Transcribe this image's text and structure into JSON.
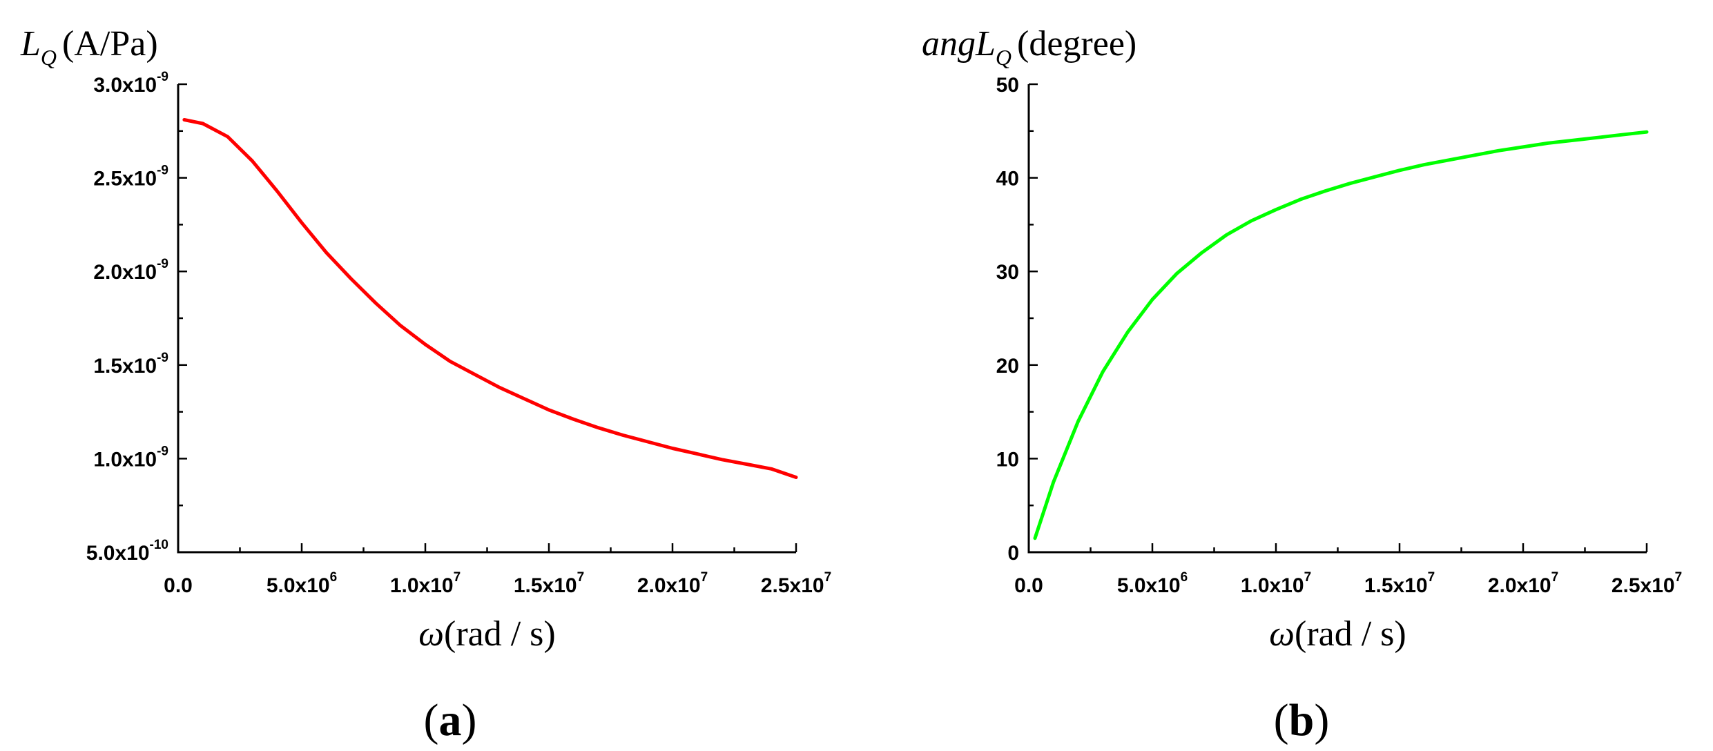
{
  "chart_data": [
    {
      "type": "line",
      "panel_label": "a",
      "xlabel_symbol": "ω",
      "xlabel_unit": "(rad / s)",
      "ylabel_symbol": "L",
      "ylabel_subscript": "Q",
      "ylabel_unit": "(A/Pa)",
      "xlim": [
        0,
        25000000
      ],
      "ylim": [
        5e-10,
        3e-09
      ],
      "x_ticks": [
        {
          "mant": "0.0",
          "exp": ""
        },
        {
          "mant": "5.0x10",
          "exp": "6"
        },
        {
          "mant": "1.0x10",
          "exp": "7"
        },
        {
          "mant": "1.5x10",
          "exp": "7"
        },
        {
          "mant": "2.0x10",
          "exp": "7"
        },
        {
          "mant": "2.5x10",
          "exp": "7"
        }
      ],
      "y_ticks": [
        {
          "mant": "5.0x10",
          "exp": "-10"
        },
        {
          "mant": "1.0x10",
          "exp": "-9"
        },
        {
          "mant": "1.5x10",
          "exp": "-9"
        },
        {
          "mant": "2.0x10",
          "exp": "-9"
        },
        {
          "mant": "2.5x10",
          "exp": "-9"
        },
        {
          "mant": "3.0x10",
          "exp": "-9"
        }
      ],
      "grid": false,
      "series": [
        {
          "color": "#ff0000",
          "x": [
            250000,
            1000000,
            2000000,
            3000000,
            4000000,
            5000000,
            6000000,
            7000000,
            8000000,
            9000000,
            10000000,
            11000000,
            12000000,
            13000000,
            14000000,
            15000000,
            16000000,
            17000000,
            18000000,
            19000000,
            20000000,
            21000000,
            22000000,
            23000000,
            24000000,
            25000000
          ],
          "y": [
            2.81e-09,
            2.79e-09,
            2.72e-09,
            2.59e-09,
            2.43e-09,
            2.26e-09,
            2.1e-09,
            1.96e-09,
            1.83e-09,
            1.71e-09,
            1.61e-09,
            1.52e-09,
            1.45e-09,
            1.38e-09,
            1.32e-09,
            1.26e-09,
            1.21e-09,
            1.165e-09,
            1.125e-09,
            1.09e-09,
            1.055e-09,
            1.025e-09,
            9.95e-10,
            9.7e-10,
            9.45e-10,
            9e-10
          ]
        }
      ]
    },
    {
      "type": "line",
      "panel_label": "b",
      "xlabel_symbol": "ω",
      "xlabel_unit": "(rad / s)",
      "ylabel_symbol": "angL",
      "ylabel_subscript": "Q",
      "ylabel_unit": "(degree)",
      "xlim": [
        0,
        25000000
      ],
      "ylim": [
        0,
        50
      ],
      "x_ticks": [
        {
          "mant": "0.0",
          "exp": ""
        },
        {
          "mant": "5.0x10",
          "exp": "6"
        },
        {
          "mant": "1.0x10",
          "exp": "7"
        },
        {
          "mant": "1.5x10",
          "exp": "7"
        },
        {
          "mant": "2.0x10",
          "exp": "7"
        },
        {
          "mant": "2.5x10",
          "exp": "7"
        }
      ],
      "y_ticks": [
        {
          "mant": "0",
          "exp": ""
        },
        {
          "mant": "10",
          "exp": ""
        },
        {
          "mant": "20",
          "exp": ""
        },
        {
          "mant": "30",
          "exp": ""
        },
        {
          "mant": "40",
          "exp": ""
        },
        {
          "mant": "50",
          "exp": ""
        }
      ],
      "grid": false,
      "series": [
        {
          "color": "#00ff00",
          "x": [
            250000,
            1000000,
            2000000,
            3000000,
            4000000,
            5000000,
            6000000,
            7000000,
            8000000,
            9000000,
            10000000,
            11000000,
            12000000,
            13000000,
            14000000,
            15000000,
            16000000,
            17000000,
            18000000,
            19000000,
            20000000,
            21000000,
            22000000,
            23000000,
            24000000,
            25000000
          ],
          "y": [
            1.5,
            7.5,
            14.0,
            19.3,
            23.5,
            27.0,
            29.8,
            32.0,
            33.9,
            35.4,
            36.6,
            37.7,
            38.6,
            39.4,
            40.1,
            40.8,
            41.4,
            41.9,
            42.4,
            42.9,
            43.3,
            43.7,
            44.0,
            44.3,
            44.6,
            44.9
          ]
        }
      ]
    }
  ]
}
